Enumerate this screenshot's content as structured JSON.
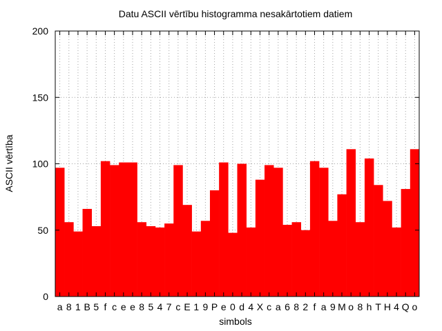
{
  "chart_data": {
    "type": "bar",
    "title": "Datu ASCII vērtību histogramma nesakārtotiem datiem",
    "xlabel": "simbols",
    "ylabel": "ASCII vērtība",
    "ylim": [
      0,
      200
    ],
    "yticks": [
      0,
      50,
      100,
      150,
      200
    ],
    "grid": true,
    "bar_color": "#ff0000",
    "grid_color": "#a0a0a0",
    "categories": [
      "a",
      "8",
      "1",
      "B",
      "5",
      "f",
      "c",
      "e",
      "e",
      "8",
      "5",
      "4",
      "7",
      "c",
      "E",
      "1",
      "9",
      "P",
      "e",
      "0",
      "d",
      "4",
      "X",
      "c",
      "a",
      "6",
      "8",
      "2",
      "f",
      "a",
      "9",
      "M",
      "o",
      "8",
      "h",
      "T",
      "H",
      "4",
      "Q",
      "o"
    ],
    "values": [
      97,
      56,
      49,
      66,
      53,
      102,
      99,
      101,
      101,
      56,
      53,
      52,
      55,
      99,
      69,
      49,
      57,
      80,
      101,
      48,
      100,
      52,
      88,
      99,
      97,
      54,
      56,
      50,
      102,
      97,
      57,
      77,
      111,
      56,
      104,
      84,
      72,
      52,
      81,
      111
    ]
  }
}
